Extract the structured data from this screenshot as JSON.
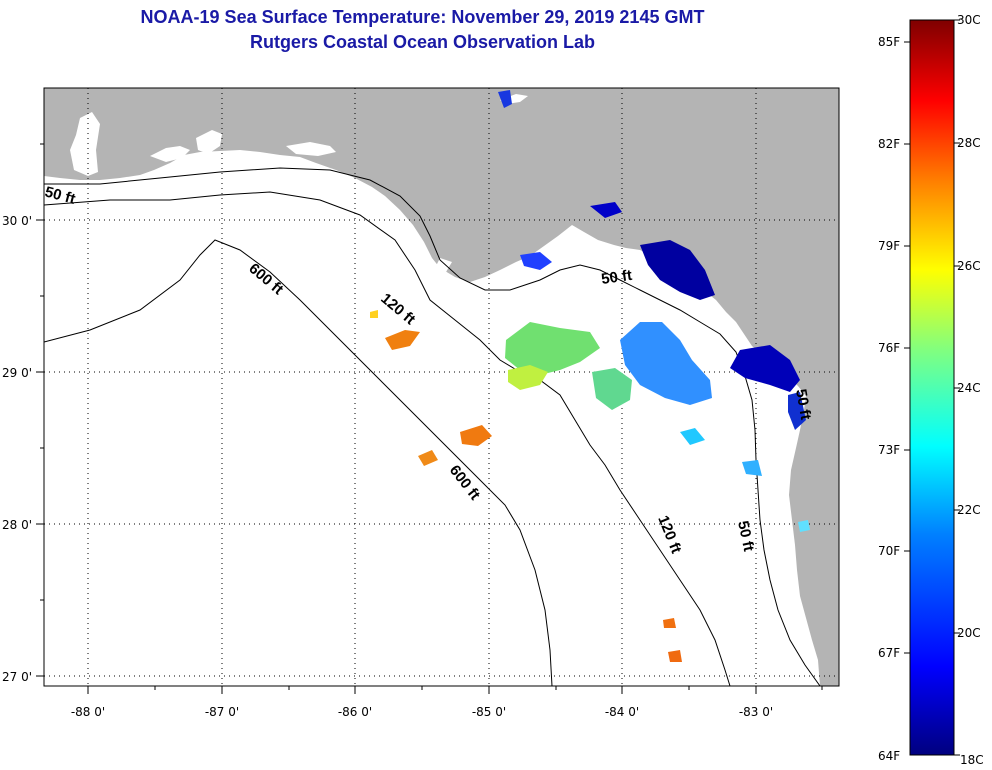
{
  "title": {
    "line1": "NOAA-19 Sea Surface Temperature:  November 29, 2019 2145 GMT",
    "line2": "Rutgers Coastal Ocean Observation Lab"
  },
  "map": {
    "x_labels": [
      "-88 0'",
      "-87 0'",
      "-86 0'",
      "-85 0'",
      "-84 0'",
      "-83 0'"
    ],
    "y_labels": [
      "30 0'",
      "29 0'",
      "28 0'",
      "27 0'"
    ],
    "contour_labels": [
      "50 ft",
      "600 ft",
      "120 ft",
      "50 ft",
      "600 ft",
      "120 ft",
      "50 ft",
      "50 ft"
    ],
    "colors": {
      "land": "#b4b4b4",
      "water": "#ffffff",
      "grid": "#000000"
    }
  },
  "colorbar": {
    "fahrenheit": [
      "85F",
      "82F",
      "79F",
      "76F",
      "73F",
      "70F",
      "67F",
      "64F"
    ],
    "celsius": [
      "30C",
      "28C",
      "26C",
      "24C",
      "22C",
      "20C",
      "18C"
    ],
    "gradient_colors": [
      "#00007f",
      "#0000ff",
      "#0080ff",
      "#00ffff",
      "#80ff80",
      "#ffff00",
      "#ff8000",
      "#ff0000",
      "#7f0000"
    ]
  }
}
